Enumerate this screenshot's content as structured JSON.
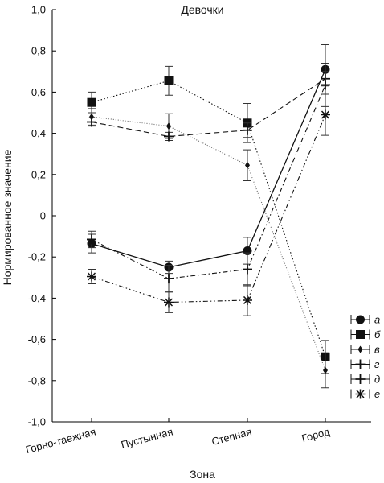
{
  "chart_data": {
    "type": "line",
    "title": "Девочки",
    "xlabel": "Зона",
    "ylabel": "Нормированное значение",
    "categories": [
      "Горно-таежная",
      "Пустынная",
      "Степная",
      "Город"
    ],
    "ylim": [
      -1.0,
      1.0
    ],
    "yticks": [
      "-1,0",
      "-0,8",
      "-0,6",
      "-0,4",
      "-0,2",
      "0",
      "0,2",
      "0,4",
      "0,6",
      "0,8",
      "1,0"
    ],
    "grid": false,
    "legend_position": "bottom-right",
    "series": [
      {
        "name": "а",
        "marker": "circle",
        "line": "solid",
        "values": [
          -0.135,
          -0.25,
          -0.17,
          0.71
        ],
        "errors": [
          0.045,
          0.03,
          0.065,
          0.12
        ]
      },
      {
        "name": "б",
        "marker": "square",
        "line": "dotted",
        "values": [
          0.55,
          0.655,
          0.45,
          -0.685
        ],
        "errors": [
          0.05,
          0.07,
          0.095,
          0.08
        ]
      },
      {
        "name": "в",
        "marker": "diamond",
        "line": "dotted-light",
        "values": [
          0.48,
          0.435,
          0.245,
          -0.75
        ],
        "errors": [
          0.04,
          0.06,
          0.075,
          0.085
        ]
      },
      {
        "name": "г",
        "marker": "plus",
        "line": "dashed",
        "values": [
          0.455,
          0.385,
          0.415,
          0.665
        ],
        "errors": [
          0.02,
          0.02,
          0.035,
          0.035
        ]
      },
      {
        "name": "д",
        "marker": "plus",
        "line": "dash-dot",
        "values": [
          -0.115,
          -0.305,
          -0.26,
          0.635
        ],
        "errors": [
          0.04,
          0.065,
          0.08,
          0.105
        ]
      },
      {
        "name": "е",
        "marker": "asterisk",
        "line": "dash-dot-dot",
        "values": [
          -0.295,
          -0.42,
          -0.41,
          0.49
        ],
        "errors": [
          0.035,
          0.05,
          0.075,
          0.1
        ]
      }
    ]
  }
}
